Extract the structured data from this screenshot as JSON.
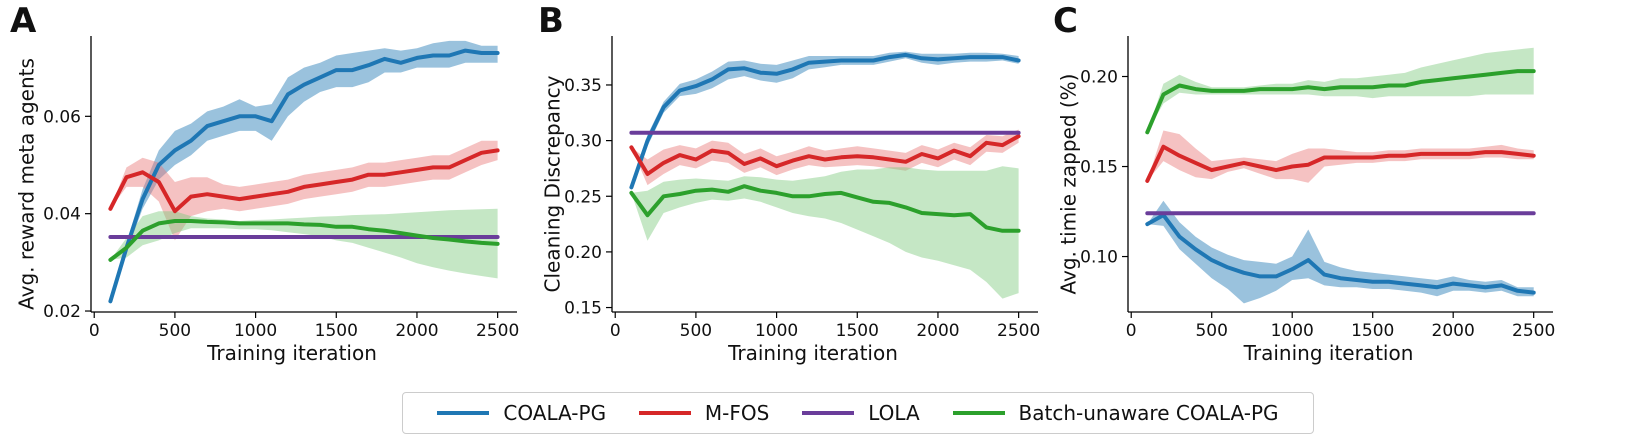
{
  "series_styles": [
    {
      "key": "coala",
      "color": "#1f77b4",
      "fill": "#1f77b4"
    },
    {
      "key": "mfos",
      "color": "#d62728",
      "fill": "#e87878"
    },
    {
      "key": "lola",
      "color": "#6a3d9a",
      "fill": "#6a3d9a"
    },
    {
      "key": "batch",
      "color": "#2ca02c",
      "fill": "#7fc97f"
    }
  ],
  "legend": [
    {
      "name": "COALA-PG",
      "color": "#1f77b4"
    },
    {
      "name": "M-FOS",
      "color": "#d62728"
    },
    {
      "name": "LOLA",
      "color": "#6a3d9a"
    },
    {
      "name": "Batch-unaware COALA-PG",
      "color": "#2ca02c"
    }
  ],
  "chart_data": [
    {
      "panel_letter": "A",
      "type": "line",
      "xlabel": "Training iteration",
      "ylabel": "Avg. reward meta agents",
      "xlim": [
        -20,
        2620
      ],
      "ylim": [
        0.0198,
        0.0765
      ],
      "xticks": [
        0,
        500,
        1000,
        1500,
        2000,
        2500
      ],
      "yticks": [
        0.02,
        0.04,
        0.06
      ],
      "ytick_labels": [
        "0.02",
        "0.04",
        "0.06"
      ],
      "x": [
        100,
        200,
        300,
        400,
        500,
        600,
        700,
        800,
        900,
        1000,
        1100,
        1200,
        1300,
        1400,
        1500,
        1600,
        1700,
        1800,
        1900,
        2000,
        2100,
        2200,
        2300,
        2400,
        2500
      ],
      "series": [
        {
          "name": "COALA-PG",
          "style": "coala",
          "values": [
            0.022,
            0.033,
            0.043,
            0.05,
            0.053,
            0.055,
            0.058,
            0.059,
            0.06,
            0.06,
            0.059,
            0.0645,
            0.0665,
            0.068,
            0.0695,
            0.0695,
            0.0705,
            0.0718,
            0.071,
            0.072,
            0.0725,
            0.0725,
            0.0735,
            0.073,
            0.073
          ],
          "lower": [
            0.022,
            0.032,
            0.041,
            0.047,
            0.05,
            0.052,
            0.055,
            0.056,
            0.057,
            0.057,
            0.055,
            0.06,
            0.063,
            0.065,
            0.066,
            0.066,
            0.067,
            0.069,
            0.069,
            0.07,
            0.07,
            0.07,
            0.071,
            0.071,
            0.071
          ],
          "upper": [
            0.022,
            0.034,
            0.045,
            0.053,
            0.057,
            0.0585,
            0.061,
            0.062,
            0.0635,
            0.062,
            0.0625,
            0.068,
            0.07,
            0.071,
            0.0725,
            0.073,
            0.0735,
            0.074,
            0.0735,
            0.074,
            0.075,
            0.0755,
            0.0755,
            0.0745,
            0.0745
          ]
        },
        {
          "name": "M-FOS",
          "style": "mfos",
          "values": [
            0.041,
            0.0475,
            0.0485,
            0.0465,
            0.0405,
            0.0435,
            0.044,
            0.0435,
            0.043,
            0.0435,
            0.044,
            0.0445,
            0.0455,
            0.046,
            0.0465,
            0.047,
            0.048,
            0.048,
            0.0485,
            0.049,
            0.0495,
            0.0495,
            0.051,
            0.0525,
            0.053
          ],
          "lower": [
            0.041,
            0.0455,
            0.0455,
            0.0425,
            0.0345,
            0.0395,
            0.0405,
            0.041,
            0.0405,
            0.041,
            0.0415,
            0.042,
            0.043,
            0.0435,
            0.044,
            0.0445,
            0.0455,
            0.0455,
            0.046,
            0.0465,
            0.047,
            0.047,
            0.0485,
            0.05,
            0.051
          ],
          "upper": [
            0.041,
            0.0495,
            0.0515,
            0.0505,
            0.0465,
            0.0475,
            0.0475,
            0.046,
            0.0455,
            0.046,
            0.0465,
            0.047,
            0.048,
            0.0485,
            0.049,
            0.0495,
            0.0505,
            0.0505,
            0.051,
            0.0515,
            0.052,
            0.052,
            0.0535,
            0.055,
            0.055
          ]
        },
        {
          "name": "LOLA",
          "style": "lola",
          "values": [
            0.0352,
            0.0352,
            0.0352,
            0.0352,
            0.0352,
            0.0352,
            0.0352,
            0.0352,
            0.0352,
            0.0352,
            0.0352,
            0.0352,
            0.0352,
            0.0352,
            0.0352,
            0.0352,
            0.0352,
            0.0352,
            0.0352,
            0.0352,
            0.0352,
            0.0352,
            0.0352,
            0.0352,
            0.0352
          ]
        },
        {
          "name": "Batch-unaware COALA-PG",
          "style": "batch",
          "values": [
            0.0305,
            0.033,
            0.0365,
            0.038,
            0.0385,
            0.0385,
            0.0383,
            0.0382,
            0.038,
            0.038,
            0.038,
            0.038,
            0.0378,
            0.0377,
            0.0373,
            0.0373,
            0.0368,
            0.0365,
            0.036,
            0.0355,
            0.035,
            0.0347,
            0.0343,
            0.034,
            0.0338
          ],
          "lower": [
            0.0305,
            0.031,
            0.0335,
            0.0345,
            0.036,
            0.037,
            0.037,
            0.037,
            0.0368,
            0.0368,
            0.0366,
            0.0362,
            0.0358,
            0.0354,
            0.0345,
            0.034,
            0.033,
            0.032,
            0.031,
            0.0298,
            0.029,
            0.0283,
            0.0277,
            0.0272,
            0.0267
          ]
        },
        {
          "name": "__upper_batch",
          "style": "batch",
          "hidden": true,
          "values": [
            0.0305,
            0.035,
            0.0395,
            0.0405,
            0.0405,
            0.0395,
            0.039,
            0.0388,
            0.0385,
            0.0387,
            0.0388,
            0.039,
            0.0392,
            0.0394,
            0.0395,
            0.0397,
            0.0398,
            0.0399,
            0.0401,
            0.0403,
            0.0405,
            0.0407,
            0.0408,
            0.0409,
            0.041
          ]
        }
      ]
    },
    {
      "panel_letter": "B",
      "type": "line",
      "xlabel": "Training iteration",
      "ylabel": "Cleaning Discrepancy",
      "xlim": [
        -20,
        2620
      ],
      "ylim": [
        0.146,
        0.394
      ],
      "xticks": [
        0,
        500,
        1000,
        1500,
        2000,
        2500
      ],
      "yticks": [
        0.15,
        0.2,
        0.25,
        0.3,
        0.35
      ],
      "ytick_labels": [
        "0.15",
        "0.20",
        "0.25",
        "0.30",
        "0.35"
      ],
      "x": [
        100,
        200,
        300,
        400,
        500,
        600,
        700,
        800,
        900,
        1000,
        1100,
        1200,
        1300,
        1400,
        1500,
        1600,
        1700,
        1800,
        1900,
        2000,
        2100,
        2200,
        2300,
        2400,
        2500
      ],
      "series": [
        {
          "name": "COALA-PG",
          "style": "coala",
          "values": [
            0.258,
            0.3,
            0.33,
            0.345,
            0.349,
            0.355,
            0.364,
            0.365,
            0.361,
            0.36,
            0.364,
            0.37,
            0.371,
            0.372,
            0.372,
            0.372,
            0.375,
            0.377,
            0.374,
            0.373,
            0.374,
            0.375,
            0.375,
            0.375,
            0.372
          ],
          "lower": [
            0.258,
            0.295,
            0.325,
            0.34,
            0.342,
            0.347,
            0.355,
            0.358,
            0.354,
            0.352,
            0.356,
            0.364,
            0.366,
            0.368,
            0.368,
            0.368,
            0.371,
            0.374,
            0.37,
            0.368,
            0.37,
            0.371,
            0.371,
            0.372,
            0.369
          ],
          "upper": [
            0.258,
            0.305,
            0.335,
            0.351,
            0.355,
            0.362,
            0.371,
            0.372,
            0.369,
            0.368,
            0.372,
            0.376,
            0.376,
            0.376,
            0.376,
            0.376,
            0.379,
            0.38,
            0.378,
            0.378,
            0.378,
            0.379,
            0.379,
            0.378,
            0.376
          ]
        },
        {
          "name": "M-FOS",
          "style": "mfos",
          "values": [
            0.294,
            0.27,
            0.28,
            0.287,
            0.283,
            0.291,
            0.289,
            0.279,
            0.284,
            0.277,
            0.282,
            0.286,
            0.283,
            0.285,
            0.286,
            0.285,
            0.283,
            0.281,
            0.288,
            0.284,
            0.291,
            0.286,
            0.298,
            0.296,
            0.304
          ],
          "lower": [
            0.294,
            0.26,
            0.27,
            0.278,
            0.275,
            0.282,
            0.28,
            0.271,
            0.276,
            0.269,
            0.274,
            0.278,
            0.276,
            0.277,
            0.278,
            0.277,
            0.275,
            0.273,
            0.28,
            0.276,
            0.283,
            0.278,
            0.29,
            0.289,
            0.298
          ],
          "upper": [
            0.294,
            0.283,
            0.292,
            0.296,
            0.293,
            0.3,
            0.298,
            0.288,
            0.293,
            0.286,
            0.29,
            0.295,
            0.291,
            0.293,
            0.295,
            0.293,
            0.291,
            0.289,
            0.296,
            0.292,
            0.298,
            0.294,
            0.305,
            0.304,
            0.31
          ]
        },
        {
          "name": "LOLA",
          "style": "lola",
          "values": [
            0.307,
            0.307,
            0.307,
            0.307,
            0.307,
            0.307,
            0.307,
            0.307,
            0.307,
            0.307,
            0.307,
            0.307,
            0.307,
            0.307,
            0.307,
            0.307,
            0.307,
            0.307,
            0.307,
            0.307,
            0.307,
            0.307,
            0.307,
            0.307,
            0.307
          ]
        },
        {
          "name": "Batch-unaware COALA-PG",
          "style": "batch",
          "values": [
            0.253,
            0.233,
            0.25,
            0.252,
            0.255,
            0.256,
            0.254,
            0.259,
            0.255,
            0.253,
            0.25,
            0.25,
            0.252,
            0.253,
            0.249,
            0.245,
            0.244,
            0.24,
            0.235,
            0.234,
            0.233,
            0.234,
            0.222,
            0.219,
            0.219
          ],
          "lower": [
            0.253,
            0.21,
            0.235,
            0.24,
            0.244,
            0.247,
            0.246,
            0.248,
            0.245,
            0.24,
            0.235,
            0.232,
            0.23,
            0.226,
            0.22,
            0.214,
            0.208,
            0.2,
            0.195,
            0.192,
            0.188,
            0.184,
            0.173,
            0.158,
            0.163
          ],
          "upper": [
            0.253,
            0.255,
            0.263,
            0.265,
            0.266,
            0.265,
            0.264,
            0.268,
            0.267,
            0.265,
            0.264,
            0.266,
            0.268,
            0.272,
            0.274,
            0.274,
            0.276,
            0.276,
            0.274,
            0.273,
            0.273,
            0.273,
            0.273,
            0.277,
            0.275
          ]
        }
      ]
    },
    {
      "panel_letter": "C",
      "type": "line",
      "xlabel": "Training iteration",
      "ylabel": "Avg. timie zapped (%)",
      "xlim": [
        -20,
        2620
      ],
      "ylim": [
        0.0692,
        0.2225
      ],
      "xticks": [
        0,
        500,
        1000,
        1500,
        2000,
        2500
      ],
      "yticks": [
        0.1,
        0.15,
        0.2
      ],
      "ytick_labels": [
        "0.10",
        "0.15",
        "0.20"
      ],
      "x": [
        100,
        200,
        300,
        400,
        500,
        600,
        700,
        800,
        900,
        1000,
        1100,
        1200,
        1300,
        1400,
        1500,
        1600,
        1700,
        1800,
        1900,
        2000,
        2100,
        2200,
        2300,
        2400,
        2500
      ],
      "series": [
        {
          "name": "COALA-PG",
          "style": "coala",
          "values": [
            0.118,
            0.123,
            0.111,
            0.104,
            0.098,
            0.094,
            0.091,
            0.089,
            0.089,
            0.093,
            0.098,
            0.09,
            0.088,
            0.087,
            0.086,
            0.086,
            0.085,
            0.084,
            0.083,
            0.085,
            0.084,
            0.083,
            0.084,
            0.081,
            0.08
          ],
          "lower": [
            0.118,
            0.117,
            0.104,
            0.096,
            0.088,
            0.082,
            0.074,
            0.077,
            0.081,
            0.087,
            0.088,
            0.084,
            0.083,
            0.083,
            0.082,
            0.082,
            0.081,
            0.08,
            0.078,
            0.081,
            0.081,
            0.08,
            0.081,
            0.078,
            0.078
          ],
          "upper": [
            0.118,
            0.131,
            0.119,
            0.111,
            0.105,
            0.101,
            0.098,
            0.097,
            0.096,
            0.1,
            0.115,
            0.097,
            0.094,
            0.092,
            0.091,
            0.09,
            0.089,
            0.088,
            0.087,
            0.089,
            0.087,
            0.086,
            0.087,
            0.083,
            0.083
          ]
        },
        {
          "name": "M-FOS",
          "style": "mfos",
          "values": [
            0.142,
            0.161,
            0.156,
            0.152,
            0.148,
            0.15,
            0.152,
            0.15,
            0.148,
            0.15,
            0.151,
            0.155,
            0.155,
            0.155,
            0.155,
            0.156,
            0.156,
            0.157,
            0.157,
            0.157,
            0.157,
            0.158,
            0.158,
            0.157,
            0.156
          ],
          "lower": [
            0.142,
            0.153,
            0.148,
            0.144,
            0.143,
            0.147,
            0.149,
            0.146,
            0.143,
            0.143,
            0.141,
            0.15,
            0.151,
            0.152,
            0.152,
            0.153,
            0.153,
            0.154,
            0.154,
            0.154,
            0.154,
            0.155,
            0.155,
            0.154,
            0.154
          ],
          "upper": [
            0.142,
            0.17,
            0.168,
            0.16,
            0.153,
            0.154,
            0.155,
            0.154,
            0.153,
            0.157,
            0.16,
            0.16,
            0.159,
            0.158,
            0.158,
            0.159,
            0.159,
            0.16,
            0.16,
            0.16,
            0.16,
            0.161,
            0.162,
            0.16,
            0.159
          ]
        },
        {
          "name": "LOLA",
          "style": "lola",
          "values": [
            0.124,
            0.124,
            0.124,
            0.124,
            0.124,
            0.124,
            0.124,
            0.124,
            0.124,
            0.124,
            0.124,
            0.124,
            0.124,
            0.124,
            0.124,
            0.124,
            0.124,
            0.124,
            0.124,
            0.124,
            0.124,
            0.124,
            0.124,
            0.124,
            0.124
          ]
        },
        {
          "name": "Batch-unaware COALA-PG",
          "style": "batch",
          "values": [
            0.169,
            0.19,
            0.195,
            0.193,
            0.192,
            0.192,
            0.192,
            0.193,
            0.193,
            0.193,
            0.194,
            0.193,
            0.194,
            0.194,
            0.194,
            0.195,
            0.195,
            0.197,
            0.198,
            0.199,
            0.2,
            0.201,
            0.202,
            0.203,
            0.203
          ],
          "lower": [
            0.169,
            0.185,
            0.191,
            0.19,
            0.19,
            0.19,
            0.19,
            0.19,
            0.19,
            0.19,
            0.19,
            0.189,
            0.189,
            0.189,
            0.188,
            0.189,
            0.189,
            0.189,
            0.189,
            0.189,
            0.189,
            0.19,
            0.19,
            0.19,
            0.19
          ],
          "upper": [
            0.169,
            0.196,
            0.201,
            0.197,
            0.194,
            0.194,
            0.194,
            0.195,
            0.196,
            0.196,
            0.198,
            0.197,
            0.199,
            0.199,
            0.2,
            0.201,
            0.202,
            0.205,
            0.207,
            0.209,
            0.211,
            0.213,
            0.214,
            0.215,
            0.216
          ]
        }
      ]
    }
  ]
}
